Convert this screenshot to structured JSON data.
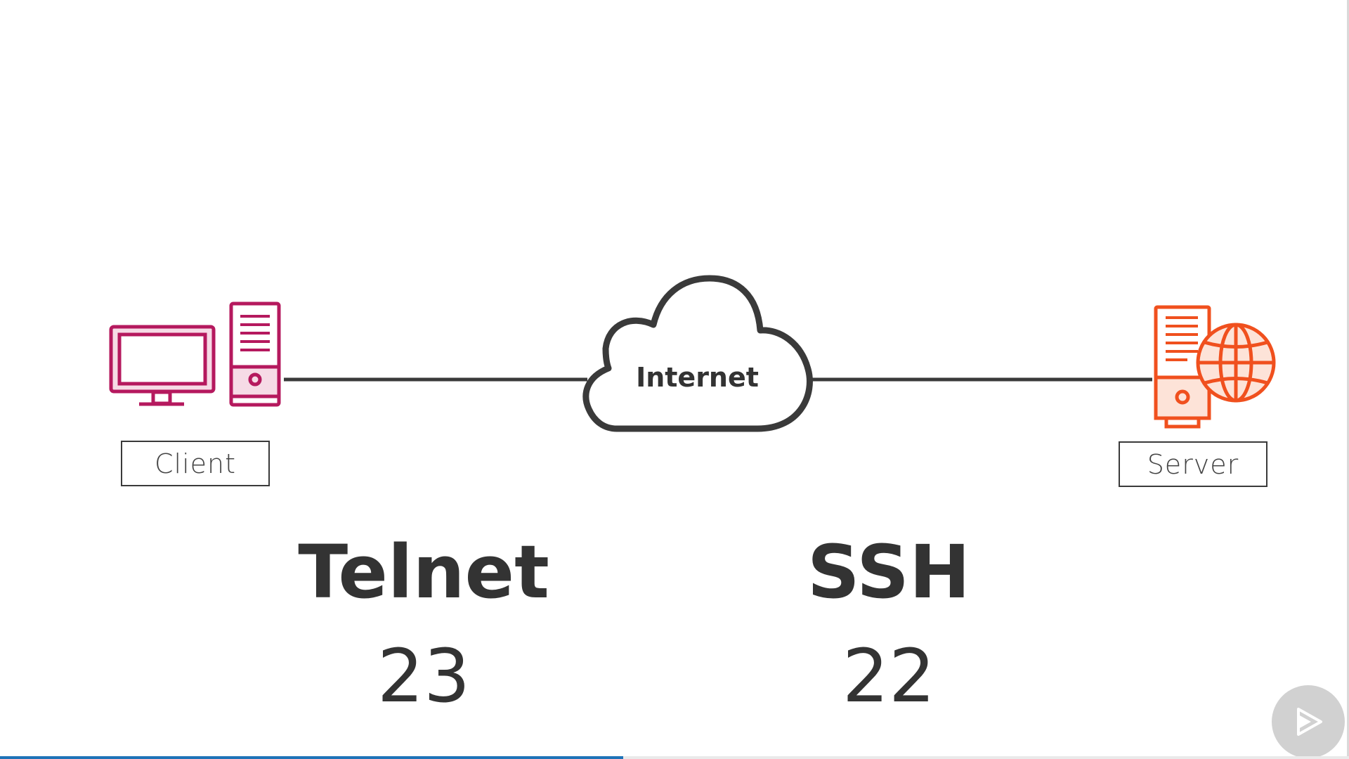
{
  "diagram": {
    "client_label": "Client",
    "server_label": "Server",
    "cloud_label": "Internet"
  },
  "protocols": [
    {
      "name": "Telnet",
      "port": "23"
    },
    {
      "name": "SSH",
      "port": "22"
    }
  ],
  "colors": {
    "client": "#b5195e",
    "server": "#f0501e",
    "line": "#3a3a3a",
    "text": "#333333",
    "progress": "#1e73b8"
  },
  "icons": {
    "client": "desktop-computer-icon",
    "cloud": "cloud-icon",
    "server": "web-server-icon",
    "player": "play-logo-icon"
  },
  "player": {
    "progress_fraction": 0.462
  }
}
